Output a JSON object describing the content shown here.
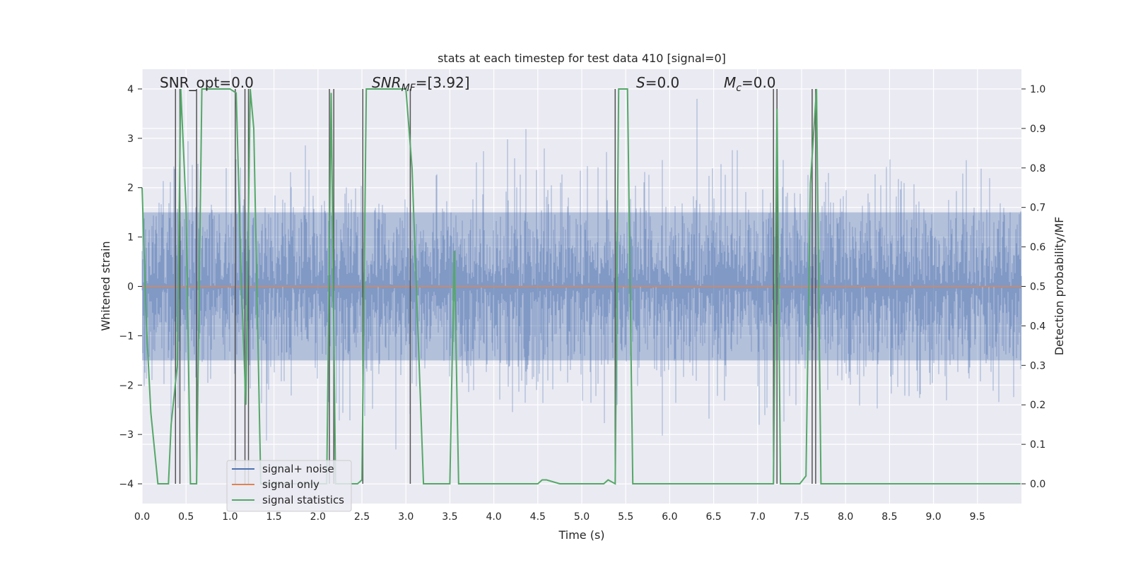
{
  "chart_data": {
    "type": "line",
    "title": "stats at each timestep for test data 410 [signal=0]",
    "xlabel": "Time (s)",
    "ylabel_left": "Whitened strain",
    "ylabel_right": "Detection probability/MF",
    "xlim": [
      0,
      10
    ],
    "ylim_left": [
      -4.4,
      4.4
    ],
    "ylim_right": [
      -0.05,
      1.05
    ],
    "x_ticks": [
      0.0,
      0.5,
      1.0,
      1.5,
      2.0,
      2.5,
      3.0,
      3.5,
      4.0,
      4.5,
      5.0,
      5.5,
      6.0,
      6.5,
      7.0,
      7.5,
      8.0,
      8.5,
      9.0,
      9.5
    ],
    "x_tick_labels": [
      "0.0",
      "0.5",
      "1.0",
      "1.5",
      "2.0",
      "2.5",
      "3.0",
      "3.5",
      "4.0",
      "4.5",
      "5.0",
      "5.5",
      "6.0",
      "6.5",
      "7.0",
      "7.5",
      "8.0",
      "8.5",
      "9.0",
      "9.5"
    ],
    "y_left_ticks": [
      4,
      3,
      2,
      1,
      0,
      -1,
      -2,
      -3,
      -4
    ],
    "y_left_tick_labels": [
      "4",
      "3",
      "2",
      "1",
      "0",
      "−1",
      "−2",
      "−3",
      "−4"
    ],
    "y_right_ticks": [
      1.0,
      0.9,
      0.8,
      0.7,
      0.6,
      0.5,
      0.4,
      0.3,
      0.2,
      0.1,
      0.0
    ],
    "y_right_tick_labels": [
      "1.0",
      "0.9",
      "0.8",
      "0.7",
      "0.6",
      "0.5",
      "0.4",
      "0.3",
      "0.2",
      "0.1",
      "0.0"
    ],
    "grid": true,
    "legend_position": "lower-left",
    "colors": {
      "noise": "#4c72b0",
      "signal": "#dd8452",
      "statistics": "#55a868",
      "markers": "#555555",
      "background": "#eaeaf2",
      "grid": "#ffffff"
    },
    "series": [
      {
        "name": "signal+ noise",
        "axis": "left",
        "note_noise_amplitude": 1.0
      },
      {
        "name": "signal only",
        "axis": "left",
        "x": [
          0,
          10
        ],
        "y": [
          0,
          0
        ]
      },
      {
        "name": "signal statistics",
        "axis": "right",
        "x": [
          0.0,
          0.05,
          0.1,
          0.18,
          0.3,
          0.33,
          0.4,
          0.44,
          0.5,
          0.55,
          0.62,
          0.68,
          1.0,
          1.07,
          1.13,
          1.18,
          1.23,
          1.27,
          1.35,
          2.1,
          2.15,
          2.2,
          2.45,
          2.5,
          2.55,
          2.65,
          3.0,
          3.07,
          3.2,
          3.5,
          3.55,
          3.6,
          4.5,
          4.55,
          4.6,
          4.75,
          5.0,
          5.25,
          5.3,
          5.38,
          5.42,
          5.52,
          5.58,
          7.18,
          7.22,
          7.26,
          7.3,
          7.48,
          7.55,
          7.6,
          7.67,
          7.72,
          9.99
        ],
        "y": [
          0.75,
          0.4,
          0.18,
          0.0,
          0.0,
          0.15,
          0.3,
          1.0,
          0.7,
          0.0,
          0.0,
          1.0,
          1.0,
          0.99,
          0.5,
          0.2,
          1.0,
          0.9,
          0.0,
          0.0,
          0.99,
          0.0,
          0.0,
          0.01,
          1.0,
          1.0,
          1.0,
          0.8,
          0.0,
          0.0,
          0.59,
          0.0,
          0.0,
          0.01,
          0.01,
          0.0,
          0.0,
          0.0,
          0.01,
          0.0,
          1.0,
          1.0,
          0.0,
          0.0,
          0.95,
          0.0,
          0.0,
          0.0,
          0.02,
          0.76,
          1.0,
          0.0,
          0.0
        ]
      }
    ],
    "vertical_markers_x": [
      0.38,
      0.43,
      0.62,
      1.06,
      1.17,
      1.21,
      2.13,
      2.18,
      2.51,
      3.05,
      5.38,
      7.18,
      7.22,
      7.62,
      7.66
    ],
    "annotations": {
      "snr_opt": "SNR_opt=0.0",
      "snr_mf_label": "SNR",
      "snr_mf_sub": "MF",
      "snr_mf_value": "=[3.92]",
      "s_label": "S",
      "s_value": "=0.0",
      "mc_label": "M",
      "mc_sub": "c",
      "mc_value": "=0.0"
    }
  }
}
